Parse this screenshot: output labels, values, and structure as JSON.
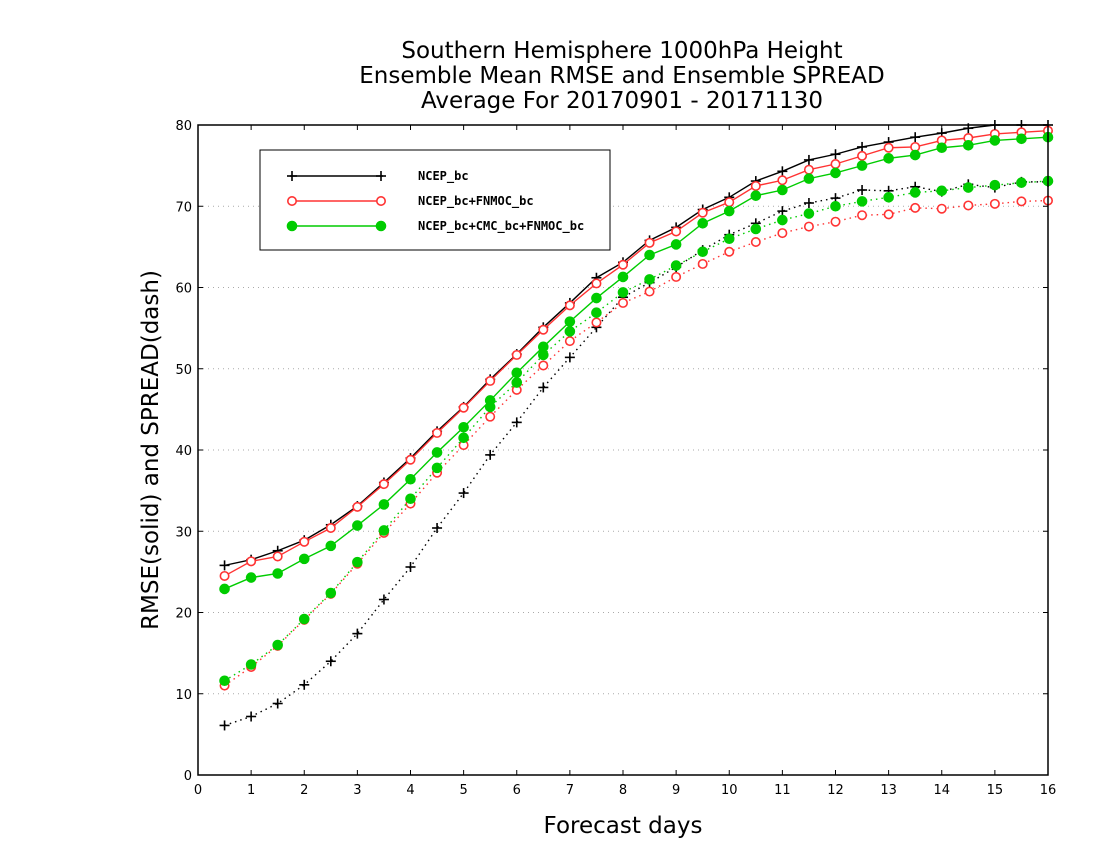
{
  "chart_data": {
    "type": "line",
    "title_lines": [
      "Southern Hemisphere 1000hPa Height",
      "Ensemble Mean RMSE and Ensemble SPREAD",
      "Average For 20170901 - 20171130"
    ],
    "xlabel": "Forecast days",
    "ylabel": "RMSE(solid) and SPREAD(dash)",
    "xlim": [
      0,
      16
    ],
    "ylim": [
      0,
      80
    ],
    "x_ticks": [
      0,
      1,
      2,
      3,
      4,
      5,
      6,
      7,
      8,
      9,
      10,
      11,
      12,
      13,
      14,
      15,
      16
    ],
    "y_ticks": [
      0,
      10,
      20,
      30,
      40,
      50,
      60,
      70,
      80
    ],
    "grid": "horizontal-dotted",
    "legend_position": "top-left",
    "x": [
      0.5,
      1,
      1.5,
      2,
      2.5,
      3,
      3.5,
      4,
      4.5,
      5,
      5.5,
      6,
      6.5,
      7,
      7.5,
      8,
      8.5,
      9,
      9.5,
      10,
      10.5,
      11,
      11.5,
      12,
      12.5,
      13,
      13.5,
      14,
      14.5,
      15,
      15.5,
      16
    ],
    "series": [
      {
        "name": "NCEP_bc",
        "color": "#000000",
        "marker": "plus",
        "rmse": [
          25.8,
          26.5,
          27.6,
          28.9,
          30.8,
          33.1,
          36.0,
          39.0,
          42.3,
          45.3,
          48.7,
          51.8,
          55.1,
          58.1,
          61.2,
          63.1,
          65.8,
          67.4,
          69.6,
          71.1,
          73.1,
          74.3,
          75.7,
          76.4,
          77.3,
          77.9,
          78.5,
          79.0,
          79.6,
          80.0,
          80.0,
          80.0
        ],
        "spread": [
          6.1,
          7.2,
          8.8,
          11.1,
          14.0,
          17.4,
          21.6,
          25.6,
          30.4,
          34.7,
          39.4,
          43.4,
          47.7,
          51.4,
          55.1,
          58.8,
          60.6,
          62.5,
          64.6,
          66.5,
          67.9,
          69.4,
          70.4,
          71.0,
          72.0,
          71.9,
          72.4,
          71.8,
          72.7,
          72.3,
          73.0,
          73.0
        ]
      },
      {
        "name": "NCEP_bc+FNMOC_bc",
        "color": "#ff3333",
        "marker": "open-circle",
        "rmse": [
          24.5,
          26.3,
          26.9,
          28.7,
          30.4,
          33.0,
          35.8,
          38.8,
          42.1,
          45.2,
          48.5,
          51.7,
          54.8,
          57.8,
          60.5,
          62.8,
          65.5,
          66.9,
          69.2,
          70.5,
          72.5,
          73.2,
          74.5,
          75.2,
          76.2,
          77.2,
          77.3,
          78.1,
          78.4,
          78.9,
          79.1,
          79.3
        ],
        "spread": [
          11.0,
          13.3,
          15.9,
          19.1,
          22.3,
          26.0,
          29.8,
          33.4,
          37.2,
          40.6,
          44.1,
          47.4,
          50.4,
          53.4,
          55.7,
          58.1,
          59.5,
          61.3,
          62.9,
          64.4,
          65.6,
          66.7,
          67.5,
          68.1,
          68.9,
          69.0,
          69.8,
          69.7,
          70.1,
          70.3,
          70.6,
          70.7
        ]
      },
      {
        "name": "NCEP_bc+CMC_bc+FNMOC_bc",
        "color": "#00cc00",
        "marker": "filled-circle",
        "rmse": [
          22.9,
          24.3,
          24.8,
          26.6,
          28.2,
          30.7,
          33.3,
          36.4,
          39.7,
          42.8,
          46.1,
          49.5,
          52.7,
          55.8,
          58.7,
          61.3,
          64.0,
          65.3,
          67.9,
          69.4,
          71.3,
          72.0,
          73.4,
          74.1,
          75.0,
          75.9,
          76.3,
          77.2,
          77.5,
          78.1,
          78.3,
          78.5
        ],
        "spread": [
          11.6,
          13.6,
          16.0,
          19.2,
          22.4,
          26.2,
          30.1,
          34.0,
          37.8,
          41.5,
          45.3,
          48.3,
          51.7,
          54.6,
          56.9,
          59.4,
          61.0,
          62.7,
          64.4,
          66.0,
          67.2,
          68.3,
          69.1,
          70.0,
          70.6,
          71.1,
          71.7,
          71.9,
          72.3,
          72.6,
          72.9,
          73.1
        ]
      }
    ]
  }
}
